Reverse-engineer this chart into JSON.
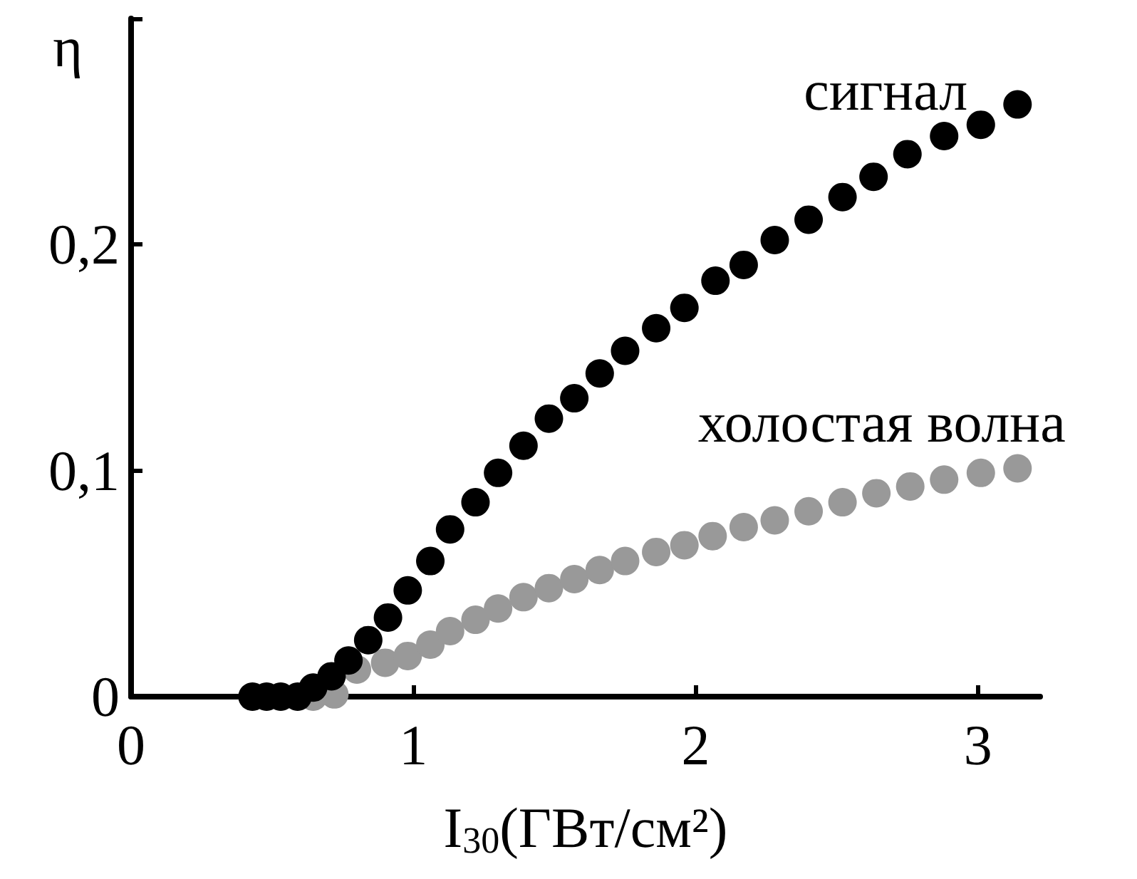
{
  "chart_data": {
    "type": "scatter",
    "xlabel": "I$_{30}$(ГВт/см²)",
    "ylabel": "η",
    "xlim": [
      0,
      3.22
    ],
    "xticks": [
      0,
      1,
      2,
      3
    ],
    "ylim": [
      0,
      0.3
    ],
    "yticks": [
      0,
      {
        "value": 0.1,
        "label": "0,1"
      },
      {
        "value": 0.2,
        "label": "0,2"
      },
      {
        "value": 0.3,
        "label": null
      }
    ],
    "grid": false,
    "legend": false,
    "marker": "circle",
    "series": [
      {
        "name": "холостая волна",
        "color": "#999999",
        "x": [
          0.645,
          0.72,
          0.8,
          0.9,
          0.98,
          1.06,
          1.13,
          1.22,
          1.3,
          1.39,
          1.48,
          1.57,
          1.66,
          1.75,
          1.86,
          1.96,
          2.06,
          2.17,
          2.28,
          2.4,
          2.52,
          2.64,
          2.76,
          2.88,
          3.01,
          3.14
        ],
        "values": [
          0,
          0.001,
          0.012,
          0.015,
          0.018,
          0.023,
          0.029,
          0.034,
          0.039,
          0.044,
          0.048,
          0.052,
          0.056,
          0.06,
          0.064,
          0.067,
          0.071,
          0.075,
          0.078,
          0.082,
          0.086,
          0.09,
          0.093,
          0.096,
          0.099,
          0.101
        ]
      },
      {
        "name": "сигнал",
        "color": "#000000",
        "x": [
          0.43,
          0.48,
          0.53,
          0.59,
          0.645,
          0.71,
          0.77,
          0.84,
          0.91,
          0.98,
          1.06,
          1.13,
          1.22,
          1.3,
          1.39,
          1.48,
          1.57,
          1.66,
          1.75,
          1.86,
          1.96,
          2.07,
          2.17,
          2.28,
          2.4,
          2.52,
          2.63,
          2.75,
          2.88,
          3.01,
          3.14
        ],
        "values": [
          0,
          0,
          0,
          0,
          0.004,
          0.009,
          0.016,
          0.025,
          0.035,
          0.047,
          0.06,
          0.074,
          0.086,
          0.099,
          0.111,
          0.123,
          0.132,
          0.143,
          0.153,
          0.163,
          0.172,
          0.184,
          0.191,
          0.202,
          0.211,
          0.221,
          0.23,
          0.24,
          0.248,
          0.253,
          0.262
        ]
      }
    ]
  }
}
